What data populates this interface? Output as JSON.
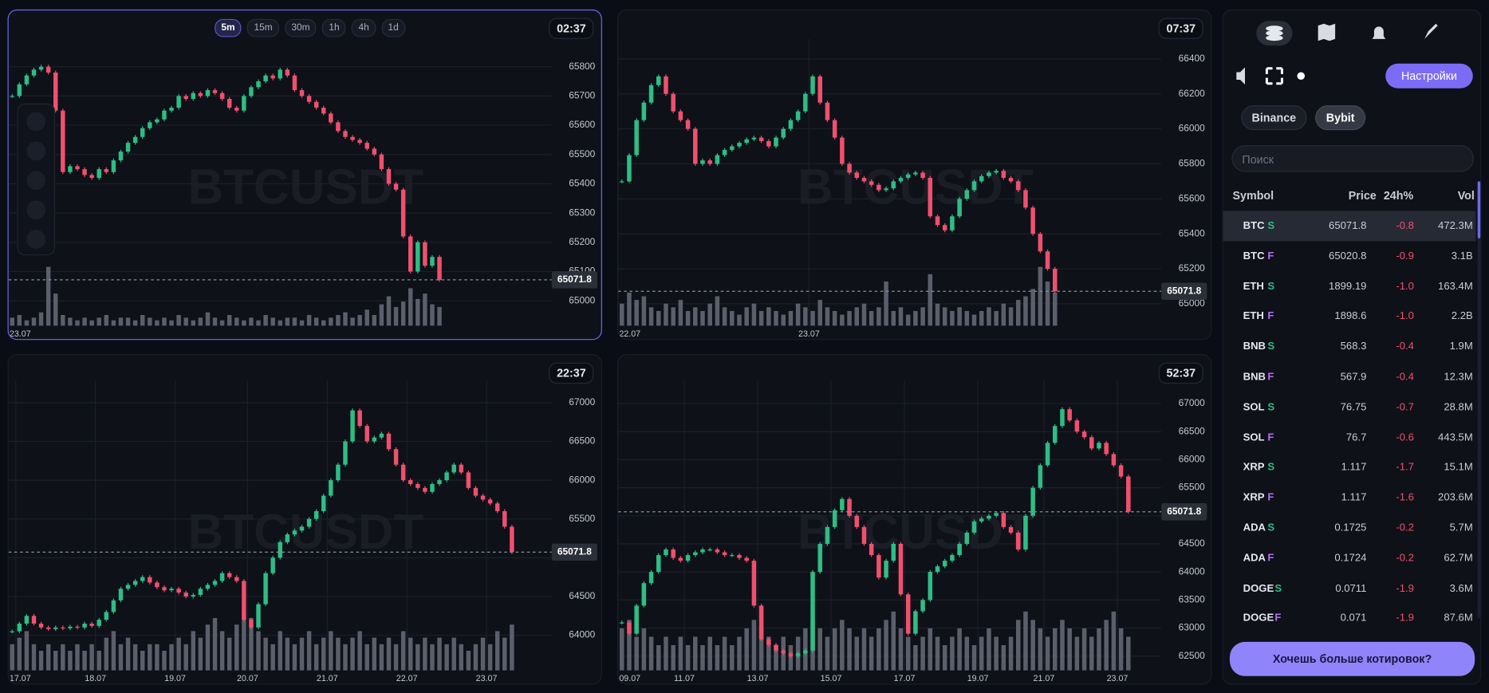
{
  "charts": [
    {
      "timer": "02:37",
      "timeframes": [
        "5m",
        "15m",
        "30m",
        "1h",
        "4h",
        "1d"
      ],
      "chart_data": {
        "type": "candlestick",
        "symbol": "BTCUSDT",
        "up_color": "#2ebd85",
        "down_color": "#f0506e",
        "volume_color": "#5a5f6b",
        "grid": true,
        "closes": [
          65700,
          65740,
          65770,
          65790,
          65800,
          65780,
          65650,
          65440,
          65460,
          65450,
          65430,
          65420,
          65450,
          65440,
          65480,
          65510,
          65540,
          65560,
          65590,
          65610,
          65620,
          65650,
          65660,
          65700,
          65690,
          65710,
          65700,
          65720,
          65710,
          65690,
          65660,
          65650,
          65700,
          65730,
          65750,
          65770,
          65760,
          65790,
          65770,
          65720,
          65700,
          65680,
          65660,
          65640,
          65610,
          65580,
          65560,
          65550,
          65540,
          65520,
          65500,
          65450,
          65400,
          65380,
          65220,
          65100,
          65200,
          65120,
          65150,
          65071.8
        ],
        "volumes": [
          3,
          4,
          2,
          3,
          5,
          22,
          12,
          4,
          3,
          2,
          3,
          2,
          3,
          4,
          2,
          3,
          3,
          2,
          4,
          3,
          2,
          3,
          2,
          4,
          3,
          2,
          3,
          5,
          3,
          2,
          4,
          3,
          2,
          3,
          2,
          4,
          3,
          2,
          3,
          3,
          2,
          4,
          3,
          2,
          3,
          4,
          5,
          3,
          4,
          6,
          4,
          8,
          11,
          7,
          9,
          14,
          10,
          12,
          8,
          7
        ],
        "last_price": 65071.8,
        "ylim": [
          64915,
          65895
        ],
        "yticks": [
          65000,
          65100,
          65200,
          65300,
          65400,
          65500,
          65600,
          65700,
          65800
        ],
        "xlim": [
          0,
          75
        ],
        "xticks": [
          {
            "value": 0,
            "label": "23.07"
          }
        ]
      }
    },
    {
      "timer": "07:37",
      "chart_data": {
        "type": "candlestick",
        "symbol": "BTCUSDT",
        "up_color": "#2ebd85",
        "down_color": "#f0506e",
        "volume_color": "#5a5f6b",
        "grid": true,
        "closes": [
          65700,
          65850,
          66050,
          66150,
          66250,
          66300,
          66200,
          66100,
          66050,
          66000,
          65800,
          65820,
          65800,
          65850,
          65880,
          65900,
          65920,
          65940,
          65950,
          65930,
          65900,
          65950,
          66000,
          66050,
          66100,
          66200,
          66300,
          66150,
          66050,
          65950,
          65800,
          65750,
          65720,
          65700,
          65680,
          65650,
          65660,
          65700,
          65720,
          65740,
          65750,
          65720,
          65500,
          65450,
          65420,
          65500,
          65600,
          65650,
          65700,
          65730,
          65750,
          65760,
          65720,
          65700,
          65650,
          65550,
          65400,
          65300,
          65200,
          65071.8
        ],
        "volumes": [
          6,
          9,
          7,
          8,
          5,
          4,
          6,
          5,
          7,
          4,
          5,
          4,
          6,
          8,
          5,
          4,
          3,
          5,
          6,
          4,
          5,
          4,
          3,
          4,
          6,
          5,
          4,
          7,
          5,
          4,
          3,
          4,
          5,
          6,
          4,
          5,
          12,
          4,
          5,
          3,
          4,
          5,
          14,
          6,
          5,
          4,
          5,
          4,
          3,
          4,
          5,
          4,
          6,
          5,
          7,
          8,
          10,
          16,
          12,
          9
        ],
        "last_price": 65071.8,
        "ylim": [
          64875,
          66514
        ],
        "yticks": [
          65000,
          65200,
          65400,
          65600,
          65800,
          66000,
          66200,
          66400
        ],
        "xlim": [
          0,
          74
        ],
        "xticks": [
          {
            "value": 0,
            "label": "22.07"
          },
          {
            "value": 26,
            "label": "23.07"
          }
        ]
      }
    },
    {
      "timer": "22:37",
      "chart_data": {
        "type": "candlestick",
        "symbol": "BTCUSDT",
        "up_color": "#2ebd85",
        "down_color": "#f0506e",
        "volume_color": "#5a5f6b",
        "grid": true,
        "closes": [
          64050,
          64150,
          64250,
          64150,
          64100,
          64080,
          64100,
          64090,
          64110,
          64100,
          64150,
          64120,
          64200,
          64300,
          64450,
          64600,
          64650,
          64700,
          64750,
          64680,
          64620,
          64580,
          64600,
          64550,
          64500,
          64520,
          64600,
          64650,
          64700,
          64800,
          64750,
          64700,
          64200,
          64100,
          64400,
          64800,
          65000,
          65200,
          65300,
          65350,
          65400,
          65500,
          65600,
          65800,
          66000,
          66200,
          66500,
          66900,
          66700,
          66500,
          66550,
          66600,
          66400,
          66200,
          66000,
          65950,
          65900,
          65850,
          65950,
          66000,
          66100,
          66200,
          66100,
          65900,
          65800,
          65750,
          65700,
          65600,
          65400,
          65071.8
        ],
        "volumes": [
          4,
          5,
          6,
          4,
          3,
          4,
          3,
          4,
          3,
          4,
          3,
          4,
          3,
          5,
          6,
          4,
          5,
          4,
          3,
          4,
          4,
          3,
          4,
          5,
          4,
          6,
          5,
          7,
          8,
          6,
          5,
          7,
          9,
          8,
          6,
          5,
          4,
          6,
          5,
          4,
          5,
          6,
          4,
          5,
          6,
          5,
          4,
          5,
          6,
          4,
          5,
          4,
          5,
          4,
          6,
          5,
          4,
          5,
          4,
          5,
          4,
          5,
          4,
          3,
          4,
          5,
          4,
          6,
          5,
          7
        ],
        "last_price": 65071.8,
        "ylim": [
          63547,
          67282
        ],
        "yticks": [
          64000,
          64500,
          65000,
          65500,
          66000,
          66500,
          67000
        ],
        "xlim": [
          0,
          75
        ],
        "xticks": [
          {
            "value": 1,
            "label": "17.07"
          },
          {
            "value": 12,
            "label": "18.07"
          },
          {
            "value": 23,
            "label": "19.07"
          },
          {
            "value": 33,
            "label": "20.07"
          },
          {
            "value": 44,
            "label": "21.07"
          },
          {
            "value": 55,
            "label": "22.07"
          },
          {
            "value": 66,
            "label": "23.07"
          }
        ]
      }
    },
    {
      "timer": "52:37",
      "chart_data": {
        "type": "candlestick",
        "symbol": "BTCUSDT",
        "up_color": "#2ebd85",
        "down_color": "#f0506e",
        "volume_color": "#5a5f6b",
        "grid": true,
        "closes": [
          63100,
          62900,
          63400,
          63800,
          64000,
          64300,
          64400,
          64250,
          64200,
          64300,
          64350,
          64400,
          64400,
          64350,
          64300,
          64300,
          64250,
          64200,
          63400,
          62800,
          62700,
          62600,
          62550,
          62500,
          62550,
          62600,
          64000,
          64500,
          64800,
          65100,
          65300,
          65000,
          64800,
          64500,
          64300,
          63900,
          64200,
          64500,
          63600,
          62900,
          63300,
          63500,
          64000,
          64100,
          64200,
          64300,
          64500,
          64700,
          64900,
          64950,
          65000,
          65050,
          64800,
          64700,
          64400,
          65000,
          65500,
          65900,
          66300,
          66600,
          66900,
          66700,
          66500,
          66400,
          66200,
          66300,
          66100,
          65900,
          65700,
          65071.8
        ],
        "volumes": [
          5,
          6,
          4,
          5,
          4,
          3,
          4,
          3,
          4,
          3,
          4,
          3,
          4,
          3,
          4,
          3,
          4,
          5,
          6,
          5,
          4,
          3,
          4,
          3,
          4,
          5,
          6,
          5,
          4,
          5,
          6,
          5,
          4,
          5,
          4,
          5,
          6,
          7,
          5,
          4,
          3,
          4,
          5,
          4,
          3,
          4,
          5,
          4,
          3,
          4,
          5,
          4,
          3,
          4,
          6,
          7,
          6,
          5,
          4,
          5,
          6,
          5,
          4,
          5,
          4,
          5,
          6,
          7,
          5,
          4
        ],
        "last_price": 65071.8,
        "ylim": [
          62246,
          67406
        ],
        "yticks": [
          62500,
          63000,
          63500,
          64000,
          64500,
          65000,
          65500,
          66000,
          66500,
          67000
        ],
        "xlim": [
          0,
          74
        ],
        "xticks": [
          {
            "value": 0,
            "label": "09.07"
          },
          {
            "value": 9,
            "label": "11.07"
          },
          {
            "value": 19,
            "label": "13.07"
          },
          {
            "value": 29,
            "label": "15.07"
          },
          {
            "value": 39,
            "label": "17.07"
          },
          {
            "value": 49,
            "label": "19.07"
          },
          {
            "value": 58,
            "label": "21.07"
          },
          {
            "value": 68,
            "label": "23.07"
          }
        ]
      }
    }
  ],
  "sidebar": {
    "settings": "Настройки",
    "exchanges": [
      "Binance",
      "Bybit"
    ],
    "search_placeholder": "Поиск",
    "table": {
      "headers": [
        "Symbol",
        "Price",
        "24h%",
        "Vol"
      ],
      "rows": [
        {
          "symbol": "BTC",
          "market": "S",
          "price": "65071.8",
          "change": "-0.8",
          "vol": "472.3M"
        },
        {
          "symbol": "BTC",
          "market": "F",
          "price": "65020.8",
          "change": "-0.9",
          "vol": "3.1B"
        },
        {
          "symbol": "ETH",
          "market": "S",
          "price": "1899.19",
          "change": "-1.0",
          "vol": "163.4M"
        },
        {
          "symbol": "ETH",
          "market": "F",
          "price": "1898.6",
          "change": "-1.0",
          "vol": "2.2B"
        },
        {
          "symbol": "BNB",
          "market": "S",
          "price": "568.3",
          "change": "-0.4",
          "vol": "1.9M"
        },
        {
          "symbol": "BNB",
          "market": "F",
          "price": "567.9",
          "change": "-0.4",
          "vol": "12.3M"
        },
        {
          "symbol": "SOL",
          "market": "S",
          "price": "76.75",
          "change": "-0.7",
          "vol": "28.8M"
        },
        {
          "symbol": "SOL",
          "market": "F",
          "price": "76.7",
          "change": "-0.6",
          "vol": "443.5M"
        },
        {
          "symbol": "XRP",
          "market": "S",
          "price": "1.117",
          "change": "-1.7",
          "vol": "15.1M"
        },
        {
          "symbol": "XRP",
          "market": "F",
          "price": "1.117",
          "change": "-1.6",
          "vol": "203.6M"
        },
        {
          "symbol": "ADA",
          "market": "S",
          "price": "0.1725",
          "change": "-0.2",
          "vol": "5.7M"
        },
        {
          "symbol": "ADA",
          "market": "F",
          "price": "0.1724",
          "change": "-0.2",
          "vol": "62.7M"
        },
        {
          "symbol": "DOGE",
          "market": "S",
          "price": "0.0711",
          "change": "-1.9",
          "vol": "3.6M"
        },
        {
          "symbol": "DOGE",
          "market": "F",
          "price": "0.071",
          "change": "-1.9",
          "vol": "87.6M"
        }
      ]
    },
    "promo": "Хочешь больше котировок?"
  }
}
